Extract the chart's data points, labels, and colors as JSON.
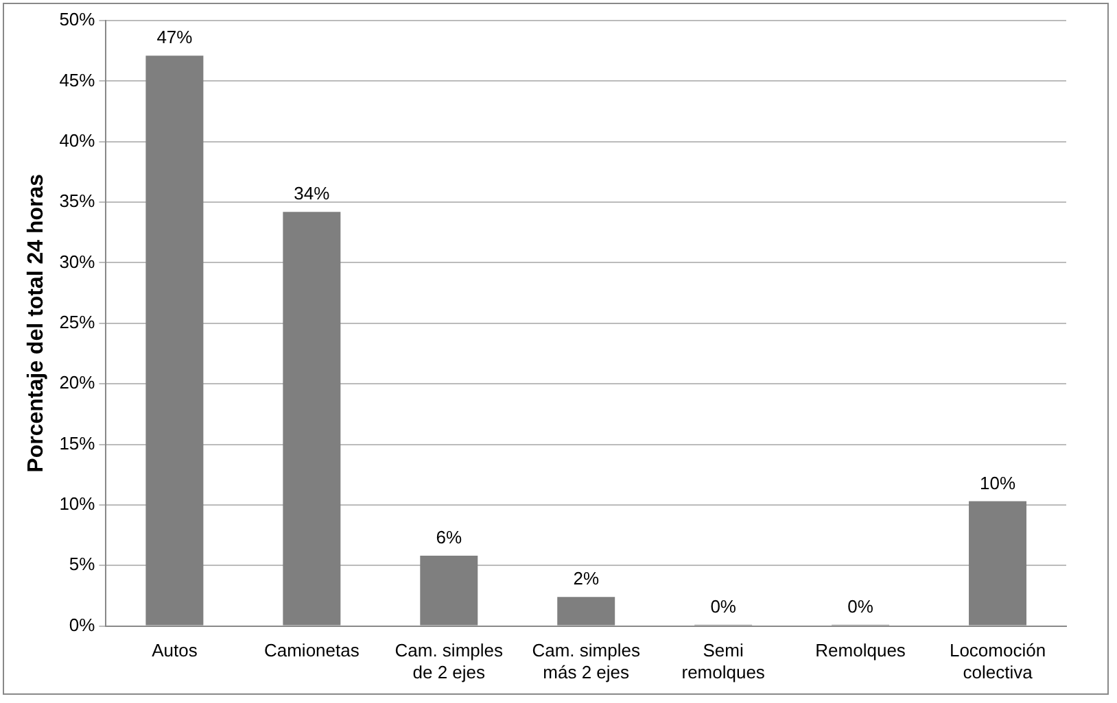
{
  "chart_data": {
    "type": "bar",
    "ylabel": "Porcentaje del total 24 horas",
    "categories": [
      "Autos",
      "Camionetas",
      "Cam. simples de 2 ejes",
      "Cam. simples más 2 ejes",
      "Semi remolques",
      "Remolques",
      "Locomoción colectiva"
    ],
    "values": [
      47.1,
      34.2,
      5.8,
      2.4,
      0.1,
      0.1,
      10.3
    ],
    "value_labels": [
      "47%",
      "34%",
      "6%",
      "2%",
      "0%",
      "0%",
      "10%"
    ],
    "color": "#7f7f7f",
    "ylim": [
      0,
      50
    ],
    "yticks": [
      {
        "value": 0,
        "label": "0%"
      },
      {
        "value": 5,
        "label": "5%"
      },
      {
        "value": 10,
        "label": "10%"
      },
      {
        "value": 15,
        "label": "15%"
      },
      {
        "value": 20,
        "label": "20%"
      },
      {
        "value": 25,
        "label": "25%"
      },
      {
        "value": 30,
        "label": "30%"
      },
      {
        "value": 35,
        "label": "35%"
      },
      {
        "value": 40,
        "label": "40%"
      },
      {
        "value": 45,
        "label": "45%"
      },
      {
        "value": 50,
        "label": "50%"
      }
    ],
    "grid": "y"
  }
}
